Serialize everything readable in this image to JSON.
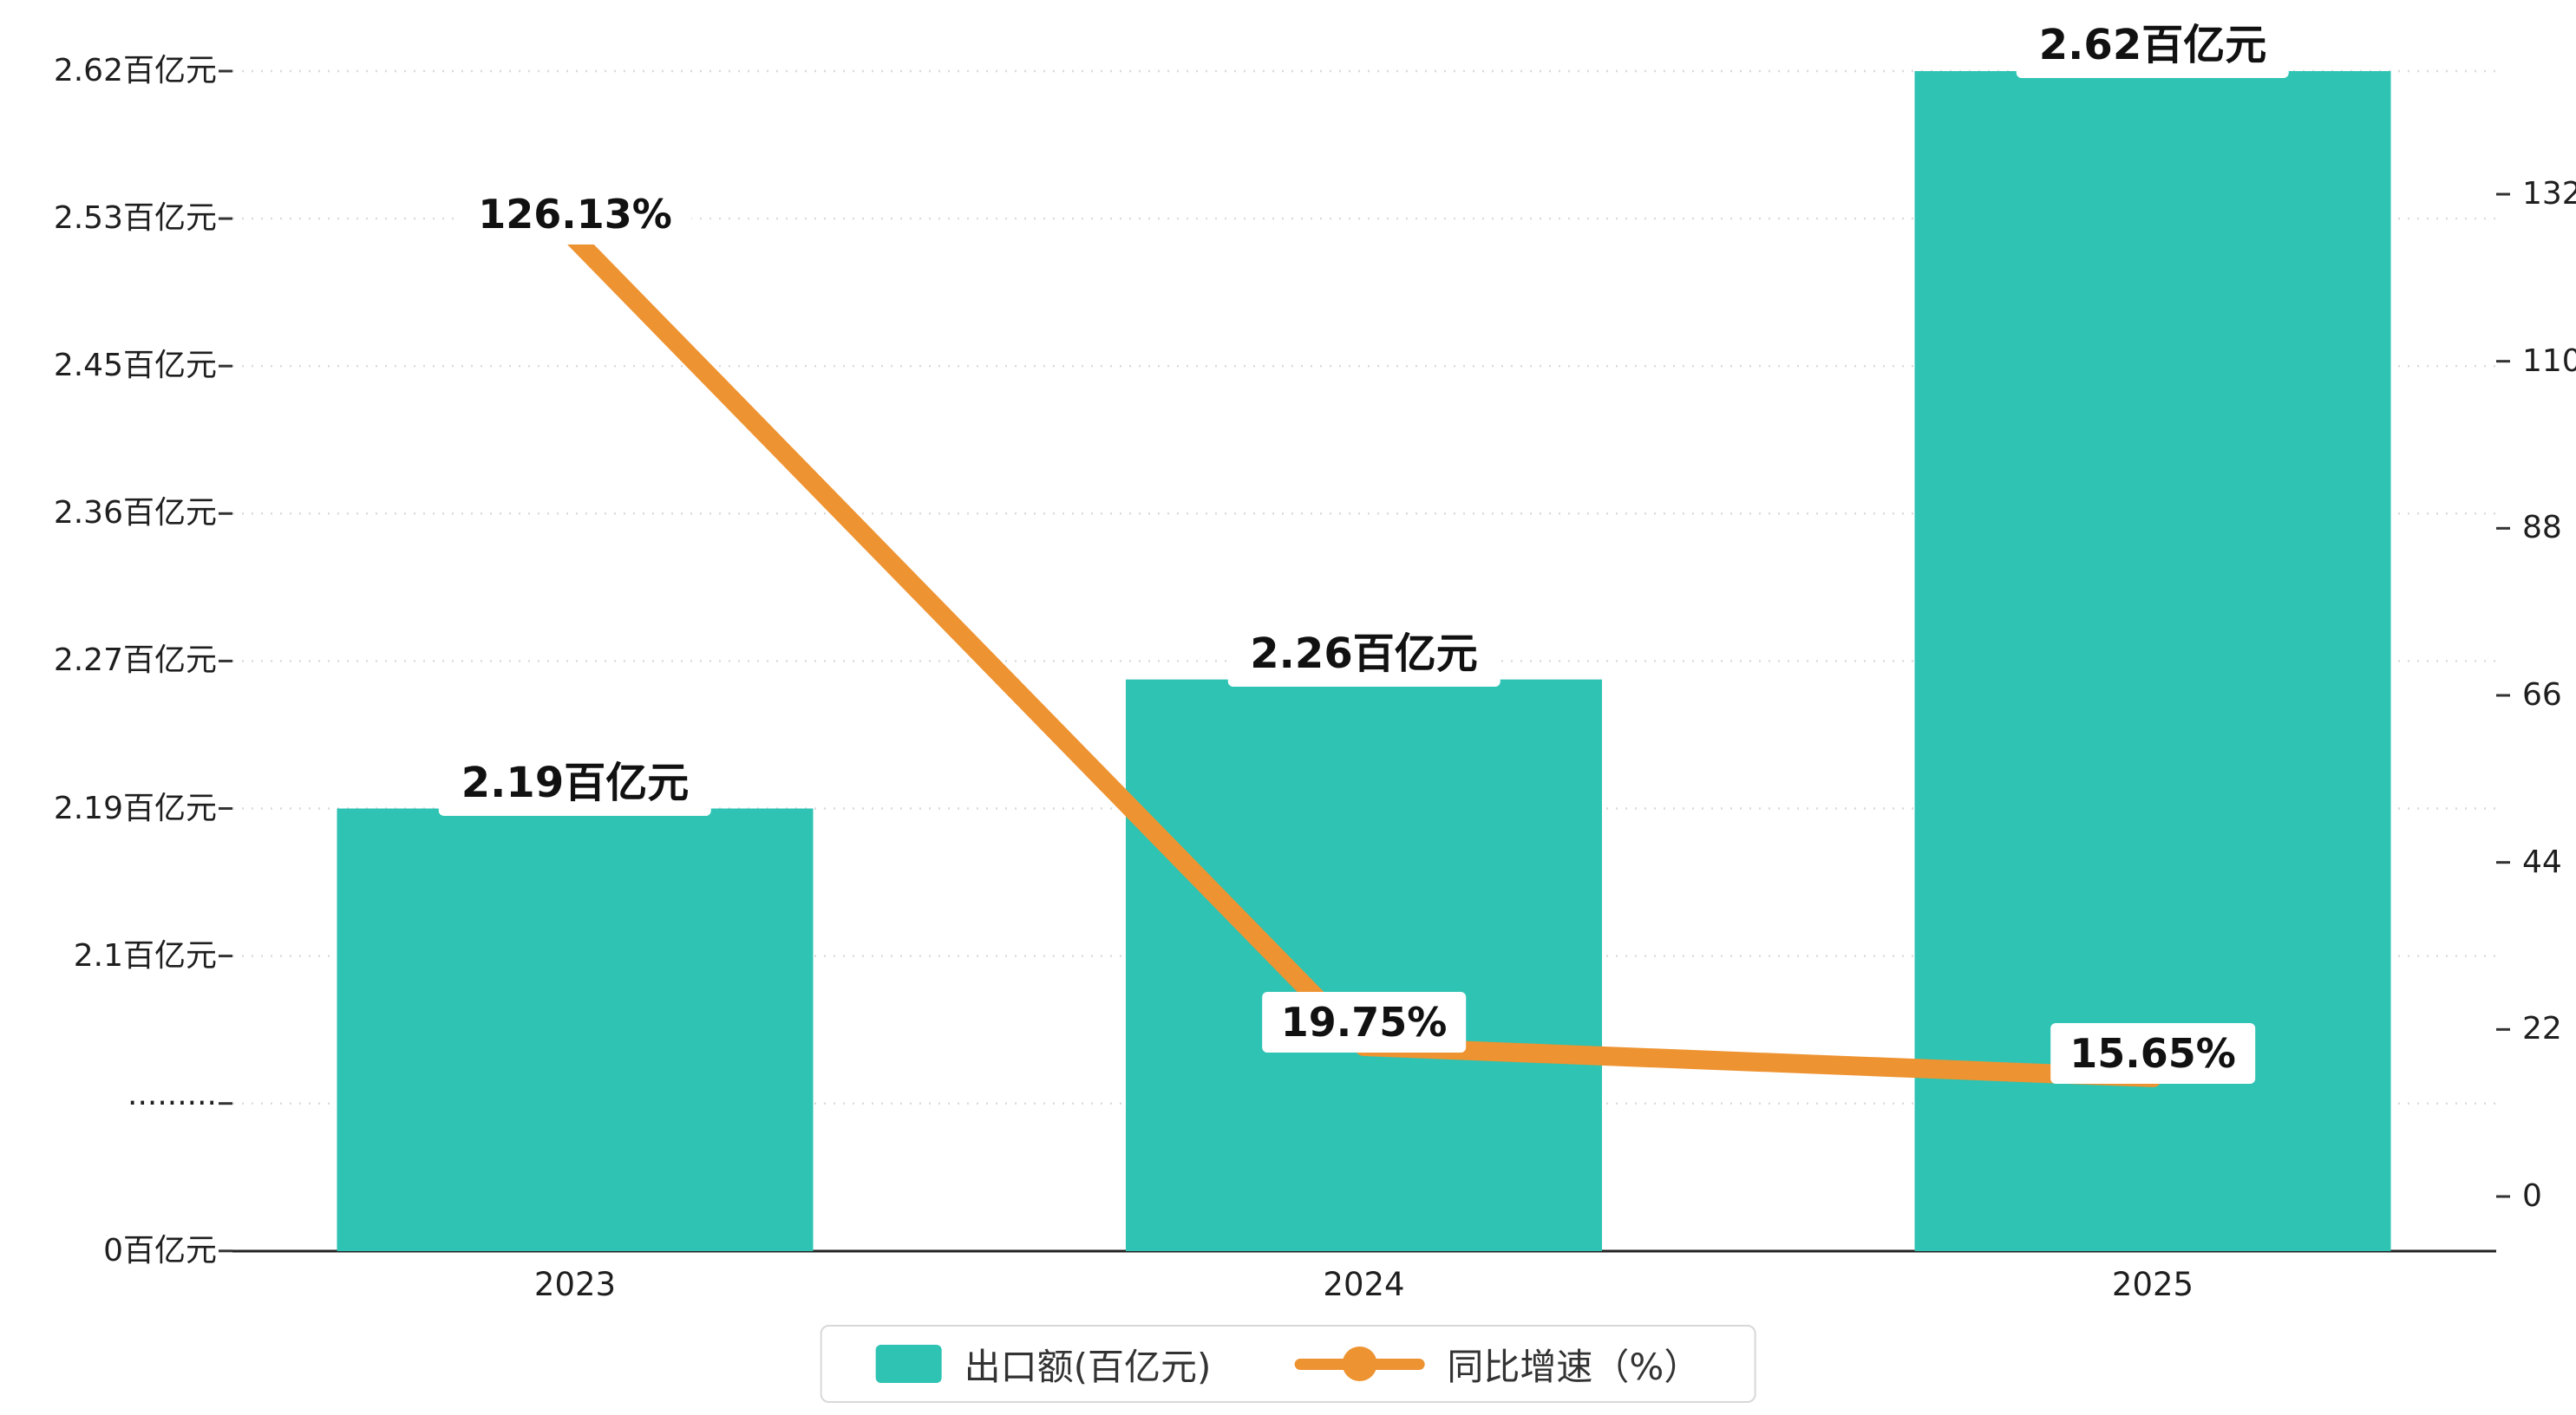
{
  "chart_data": {
    "type": "bar+line",
    "title": "",
    "categories": [
      "2023",
      "2024",
      "2025"
    ],
    "series": [
      {
        "name": "出口额(百亿元)",
        "type": "bar",
        "axis": "left",
        "color": "#2ec3b3",
        "values": [
          2.19,
          2.26,
          2.62
        ],
        "labels": [
          "2.19百亿元",
          "2.26百亿元",
          "2.62百亿元"
        ]
      },
      {
        "name": "同比增速（%）",
        "type": "line",
        "axis": "right",
        "color": "#ee9331",
        "values": [
          126.13,
          19.75,
          15.65
        ],
        "labels": [
          "126.13%",
          "19.75%",
          "15.65%"
        ]
      }
    ],
    "left_axis": {
      "ticks": [
        {
          "label": "2.62百亿元",
          "value": 2.62
        },
        {
          "label": "2.53百亿元",
          "value": 2.53
        },
        {
          "label": "2.45百亿元",
          "value": 2.45
        },
        {
          "label": "2.36百亿元",
          "value": 2.36
        },
        {
          "label": "2.27百亿元",
          "value": 2.27
        },
        {
          "label": "2.19百亿元",
          "value": 2.19
        },
        {
          "label": "2.1百亿元",
          "value": 2.1
        },
        {
          "label": "·········",
          "value": null
        },
        {
          "label": "0百亿元",
          "value": 0
        }
      ],
      "broken_axis": true
    },
    "right_axis": {
      "ticks": [
        "132",
        "110",
        "88",
        "66",
        "44",
        "22",
        "0"
      ],
      "min": 0,
      "max": 132
    },
    "legend": [
      {
        "label": "出口额(百亿元)",
        "type": "bar",
        "color": "#2ec3b3"
      },
      {
        "label": "同比增速（%）",
        "type": "line",
        "color": "#ee9331"
      }
    ],
    "grid": true,
    "legend_position": "bottom"
  }
}
